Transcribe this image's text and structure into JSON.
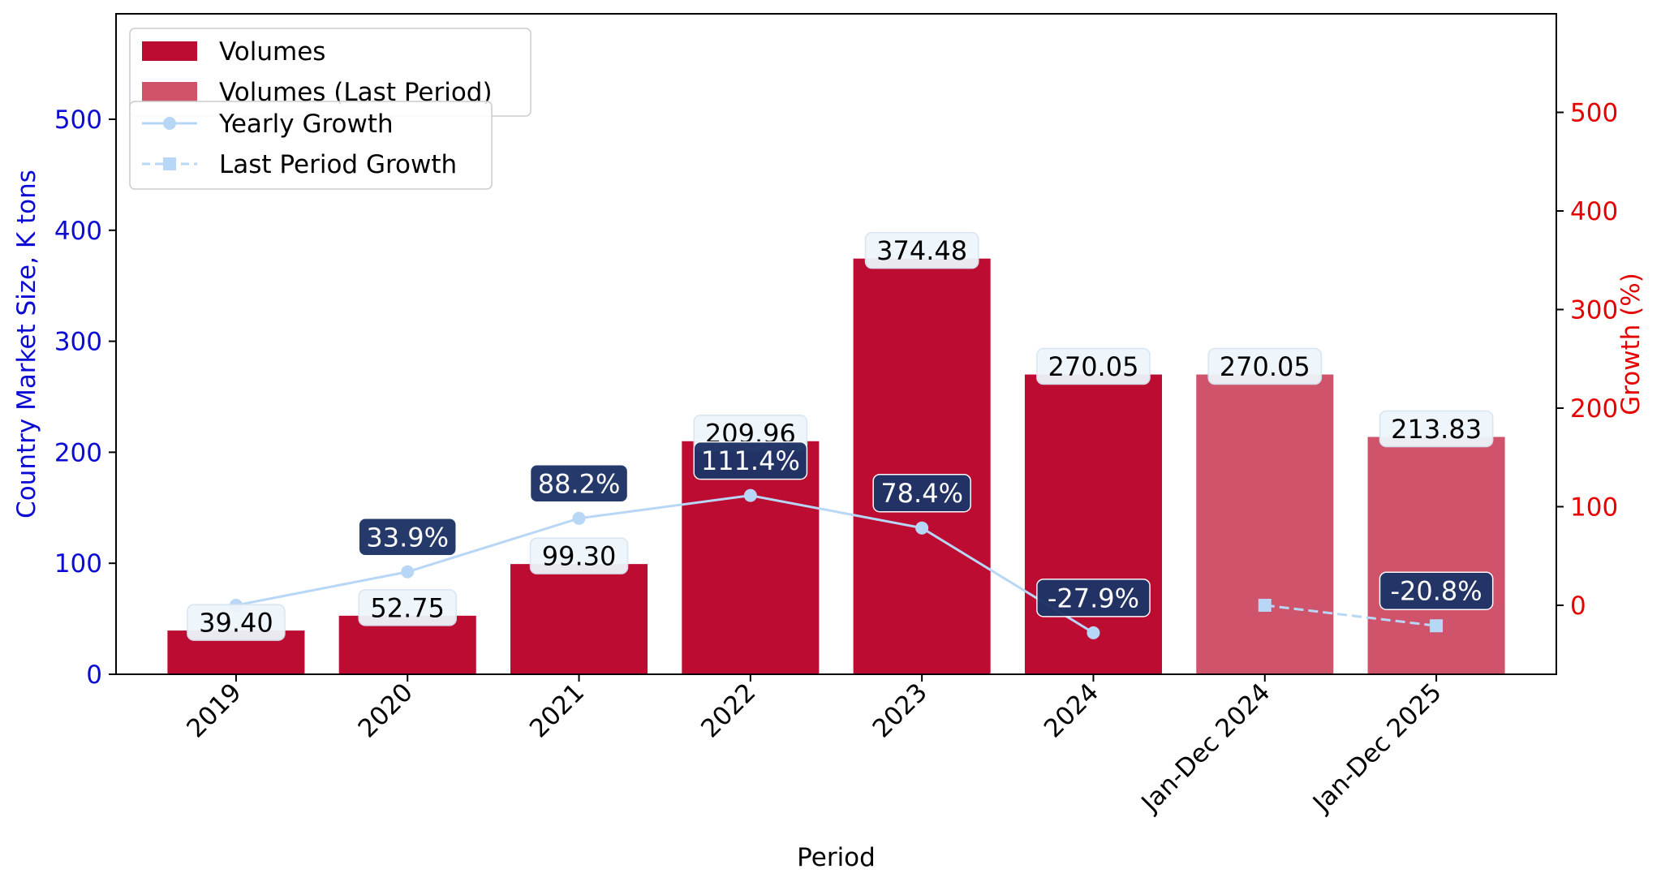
{
  "chart_data": {
    "type": "bar",
    "categories": [
      "2019",
      "2020",
      "2021",
      "2022",
      "2023",
      "2024",
      "Jan-Dec 2024",
      "Jan-Dec 2025"
    ],
    "xlabel": "Period",
    "ylabel": "Country Market Size, K tons",
    "y2label": "Growth (%)",
    "ylim": [
      0,
      595
    ],
    "y2lim": [
      -70,
      600
    ],
    "yticks": [
      0,
      100,
      200,
      300,
      400,
      500
    ],
    "y2ticks": [
      0,
      100,
      200,
      300,
      400,
      500
    ],
    "series": [
      {
        "name": "Volumes",
        "kind": "bar",
        "color": "#bc0c31",
        "values": [
          39.4,
          52.75,
          99.3,
          209.96,
          374.48,
          270.05,
          null,
          null
        ],
        "labels": [
          "39.40",
          "52.75",
          "99.30",
          "209.96",
          "374.48",
          "270.05",
          null,
          null
        ]
      },
      {
        "name": "Volumes (Last Period)",
        "kind": "bar",
        "color": "#d0536c",
        "values": [
          null,
          null,
          null,
          null,
          null,
          null,
          270.05,
          213.83
        ],
        "labels": [
          null,
          null,
          null,
          null,
          null,
          null,
          "270.05",
          "213.83"
        ]
      },
      {
        "name": "Yearly Growth",
        "kind": "line",
        "axis": "right",
        "color": "#b8d6f5",
        "marker": "circle",
        "dash": "solid",
        "values": [
          0,
          33.9,
          88.2,
          111.4,
          78.4,
          -27.9,
          null,
          null
        ],
        "labels": [
          null,
          "33.9%",
          "88.2%",
          "111.4%",
          "78.4%",
          "-27.9%",
          null,
          null
        ]
      },
      {
        "name": "Last Period Growth",
        "kind": "line",
        "axis": "right",
        "color": "#b8d6f5",
        "marker": "square",
        "dash": "dashed",
        "values": [
          null,
          null,
          null,
          null,
          null,
          null,
          0,
          -20.8
        ],
        "labels": [
          null,
          null,
          null,
          null,
          null,
          null,
          null,
          "-20.8%"
        ]
      }
    ],
    "legend": [
      "Volumes",
      "Volumes (Last Period)",
      "Yearly Growth",
      "Last Period Growth"
    ],
    "legend_position": "top-left",
    "grid": false,
    "colors": {
      "left_axis": "#0b0bd4",
      "right_axis": "#e60000",
      "growth_label_bg": "#1e3466",
      "value_label_bg": "#eef5fb"
    }
  }
}
